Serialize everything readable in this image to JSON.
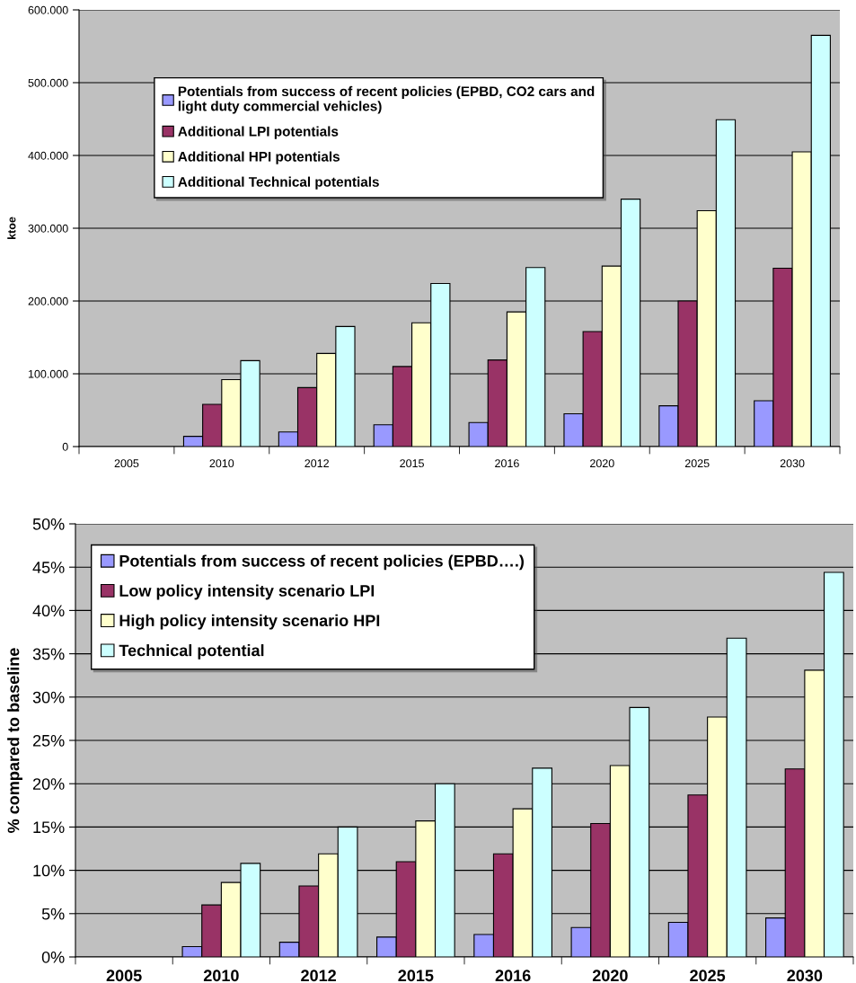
{
  "chart_data": [
    {
      "type": "bar",
      "ylabel": "ktoe",
      "categories": [
        "2005",
        "2010",
        "2012",
        "2015",
        "2016",
        "2020",
        "2025",
        "2030"
      ],
      "series": [
        {
          "name": "Potentials from success of recent policies (EPBD, CO2 cars and\nlight duty commercial vehicles)",
          "color": "#9999ff",
          "values": [
            null,
            14000,
            20000,
            30000,
            33000,
            45000,
            56000,
            63000
          ]
        },
        {
          "name": "Additional LPI potentials",
          "color": "#993366",
          "values": [
            null,
            58000,
            81000,
            110000,
            119000,
            158000,
            200000,
            245000
          ]
        },
        {
          "name": "Additional HPI potentials",
          "color": "#ffffcc",
          "values": [
            null,
            92000,
            128000,
            170000,
            185000,
            248000,
            324000,
            405000
          ]
        },
        {
          "name": "Additional Technical potentials",
          "color": "#ccffff",
          "values": [
            null,
            118000,
            165000,
            224000,
            246000,
            340000,
            449000,
            565000
          ]
        }
      ],
      "ylim": [
        0,
        600000
      ],
      "yticks": [
        0,
        {
          "value": 100000,
          "label": "100.000"
        },
        {
          "value": 200000,
          "label": "200.000"
        },
        {
          "value": 300000,
          "label": "300.000"
        },
        {
          "value": 400000,
          "label": "400.000"
        },
        {
          "value": 500000,
          "label": "500.000"
        },
        {
          "value": 600000,
          "label": "600.000"
        }
      ],
      "grid": "y",
      "legend": "top left"
    },
    {
      "type": "bar",
      "ylabel": "% compared to baseline",
      "categories": [
        "2005",
        "2010",
        "2012",
        "2015",
        "2016",
        "2020",
        "2025",
        "2030"
      ],
      "series": [
        {
          "name": "Potentials from success of recent policies (EPBD….)",
          "color": "#9999ff",
          "values": [
            null,
            1.2,
            1.7,
            2.3,
            2.6,
            3.4,
            4.0,
            4.5
          ]
        },
        {
          "name": "Low policy intensity scenario LPI",
          "color": "#993366",
          "values": [
            null,
            6.0,
            8.2,
            11.0,
            11.9,
            15.4,
            18.7,
            21.7
          ]
        },
        {
          "name": "High policy intensity scenario HPI",
          "color": "#ffffcc",
          "values": [
            null,
            8.6,
            11.9,
            15.7,
            17.1,
            22.1,
            27.7,
            33.1
          ]
        },
        {
          "name": "Technical potential",
          "color": "#ccffff",
          "values": [
            null,
            10.8,
            15.0,
            20.0,
            21.8,
            28.8,
            36.8,
            44.4
          ]
        }
      ],
      "ylim": [
        0,
        50
      ],
      "yticks": [
        {
          "value": 0,
          "label": "0%"
        },
        {
          "value": 5,
          "label": "5%"
        },
        {
          "value": 10,
          "label": "10%"
        },
        {
          "value": 15,
          "label": "15%"
        },
        {
          "value": 20,
          "label": "20%"
        },
        {
          "value": 25,
          "label": "25%"
        },
        {
          "value": 30,
          "label": "30%"
        },
        {
          "value": 35,
          "label": "35%"
        },
        {
          "value": 40,
          "label": "40%"
        },
        {
          "value": 45,
          "label": "45%"
        },
        {
          "value": 50,
          "label": "50%"
        }
      ],
      "grid": "y",
      "legend": "top left"
    }
  ]
}
